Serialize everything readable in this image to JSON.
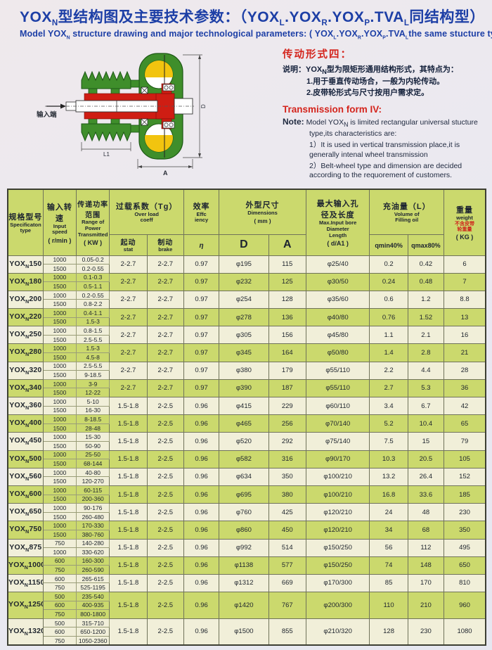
{
  "header": {
    "title_zh_segs": [
      "YOX",
      {
        "sub": "N"
      },
      "型结构图及主要技术参数：（YOX",
      {
        "sub": "L"
      },
      ".YOX",
      {
        "sub": "R"
      },
      ".YOX",
      {
        "sub": "P"
      },
      ".TVA",
      {
        "sub": "L"
      },
      "同结构型）"
    ],
    "title_en_segs": [
      "Model YOX",
      {
        "sub": "N"
      },
      " structure drawing and major technological parameters: ( YOX",
      {
        "sub": "L"
      },
      ".YOX",
      {
        "sub": "R"
      },
      ".YOX",
      {
        "sub": "P"
      },
      ".TVA",
      {
        "sub": "L"
      },
      "the same stucture type )"
    ]
  },
  "drawing": {
    "input_label": "输入端",
    "dim_l1": "L1",
    "dim_a": "A",
    "dim_d": "D"
  },
  "notes": {
    "heading_zh": "传动形式四：",
    "shuoming_label": "说明：",
    "shuoming_line1_segs": [
      "YOX",
      {
        "sub": "N"
      },
      "型为限矩形通用结构形式，其特点为："
    ],
    "shuoming_line2": "1.用于垂直传动场合，一般为内轮传动。",
    "shuoming_line3": "2.皮带轮形式与尺寸按用户需求定。",
    "heading_en": "Transmission form IV:",
    "note_label": "Note:",
    "note_line1_segs": [
      "Model YOX",
      {
        "sub": "N"
      },
      " is limited rectangular universal stucture type,its characteristics are:"
    ],
    "note_line2": "1）It is used in vertical transmission place,it is generally intenal wheel transmission",
    "note_line3": "2）Belt-wheel type and dimension are decided according to the requorement of customers."
  },
  "table": {
    "model_prefix_segs": [
      "YOX",
      {
        "sub": "N"
      }
    ],
    "h": {
      "model_zh": "规格型号",
      "model_en1": "Specificaton",
      "model_en2": "type",
      "speed_zh": "输入转速",
      "speed_en1": "Input",
      "speed_en2": "speed",
      "speed_unit": "( r/min )",
      "power_zh1": "传递功率",
      "power_zh2": "范围",
      "power_en1": "Range of",
      "power_en2": "Power",
      "power_en3": "Transmitted",
      "power_unit": "( KW )",
      "tg_zh": "过载系数（Tg）",
      "tg_en1": "Over load",
      "tg_en2": "coeff",
      "start_zh": "起动",
      "start_en": "stat",
      "brake_zh": "制动",
      "brake_en": "brake",
      "eff_zh": "效率",
      "eff_en1": "Effc",
      "eff_en2": "iency",
      "eff_sym": "η",
      "dim_zh": "外型尺寸",
      "dim_en": "Dimensions",
      "dim_unit": "( mm )",
      "dim_d": "D",
      "dim_a": "A",
      "bore_zh1": "最大输入孔",
      "bore_zh2": "径及长度",
      "bore_en1": "Max.Input bore",
      "bore_en2": "Diameter",
      "bore_en3": "Length",
      "bore_unit": "( d/A1 )",
      "oil_zh": "充油量（L）",
      "oil_en1": "Volume of",
      "oil_en2": "Filling oil",
      "oil_min": "qmin40%",
      "oil_max": "qmax80%",
      "kg_zh": "重量",
      "kg_en": "weight",
      "kg_note1": "不含皮带",
      "kg_note2": "轮重量",
      "kg_unit": "( KG )"
    },
    "rows": [
      {
        "model": "150",
        "speeds": [
          [
            "1000",
            "0.05-0.2"
          ],
          [
            "1500",
            "0.2-0.55"
          ]
        ],
        "tg1": "2-2.7",
        "tg2": "2-2.7",
        "eff": "0.97",
        "d": "φ195",
        "a": "115",
        "bore": "φ25/40",
        "qmin": "0.2",
        "qmax": "0.42",
        "kg": "6"
      },
      {
        "model": "180",
        "speeds": [
          [
            "1000",
            "0.1-0.3"
          ],
          [
            "1500",
            "0.5-1.1"
          ]
        ],
        "tg1": "2-2.7",
        "tg2": "2-2.7",
        "eff": "0.97",
        "d": "φ232",
        "a": "125",
        "bore": "φ30/50",
        "qmin": "0.24",
        "qmax": "0.48",
        "kg": "7"
      },
      {
        "model": "200",
        "speeds": [
          [
            "1000",
            "0.2-0.55"
          ],
          [
            "1500",
            "0.8-2.2"
          ]
        ],
        "tg1": "2-2.7",
        "tg2": "2-2.7",
        "eff": "0.97",
        "d": "φ254",
        "a": "128",
        "bore": "φ35/60",
        "qmin": "0.6",
        "qmax": "1.2",
        "kg": "8.8"
      },
      {
        "model": "220",
        "speeds": [
          [
            "1000",
            "0.4-1.1"
          ],
          [
            "1500",
            "1.5-3"
          ]
        ],
        "tg1": "2-2.7",
        "tg2": "2-2.7",
        "eff": "0.97",
        "d": "φ278",
        "a": "136",
        "bore": "φ40/80",
        "qmin": "0.76",
        "qmax": "1.52",
        "kg": "13"
      },
      {
        "model": "250",
        "speeds": [
          [
            "1000",
            "0.8-1.5"
          ],
          [
            "1500",
            "2.5-5.5"
          ]
        ],
        "tg1": "2-2.7",
        "tg2": "2-2.7",
        "eff": "0.97",
        "d": "φ305",
        "a": "156",
        "bore": "φ45/80",
        "qmin": "1.1",
        "qmax": "2.1",
        "kg": "16"
      },
      {
        "model": "280",
        "speeds": [
          [
            "1000",
            "1.5-3"
          ],
          [
            "1500",
            "4.5-8"
          ]
        ],
        "tg1": "2-2.7",
        "tg2": "2-2.7",
        "eff": "0.97",
        "d": "φ345",
        "a": "164",
        "bore": "φ50/80",
        "qmin": "1.4",
        "qmax": "2.8",
        "kg": "21"
      },
      {
        "model": "320",
        "speeds": [
          [
            "1000",
            "2.5-5.5"
          ],
          [
            "1500",
            "9-18.5"
          ]
        ],
        "tg1": "2-2.7",
        "tg2": "2-2.7",
        "eff": "0.97",
        "d": "φ380",
        "a": "179",
        "bore": "φ55/110",
        "qmin": "2.2",
        "qmax": "4.4",
        "kg": "28"
      },
      {
        "model": "340",
        "speeds": [
          [
            "1000",
            "3-9"
          ],
          [
            "1500",
            "12-22"
          ]
        ],
        "tg1": "2-2.7",
        "tg2": "2-2.7",
        "eff": "0.97",
        "d": "φ390",
        "a": "187",
        "bore": "φ55/110",
        "qmin": "2.7",
        "qmax": "5.3",
        "kg": "36"
      },
      {
        "model": "360",
        "speeds": [
          [
            "1000",
            "5-10"
          ],
          [
            "1500",
            "16-30"
          ]
        ],
        "tg1": "1.5-1.8",
        "tg2": "2-2.5",
        "eff": "0.96",
        "d": "φ415",
        "a": "229",
        "bore": "φ60/110",
        "qmin": "3.4",
        "qmax": "6.7",
        "kg": "42"
      },
      {
        "model": "400",
        "speeds": [
          [
            "1000",
            "8-18.5"
          ],
          [
            "1500",
            "28-48"
          ]
        ],
        "tg1": "1.5-1.8",
        "tg2": "2-2.5",
        "eff": "0.96",
        "d": "φ465",
        "a": "256",
        "bore": "φ70/140",
        "qmin": "5.2",
        "qmax": "10.4",
        "kg": "65"
      },
      {
        "model": "450",
        "speeds": [
          [
            "1000",
            "15-30"
          ],
          [
            "1500",
            "50-90"
          ]
        ],
        "tg1": "1.5-1.8",
        "tg2": "2-2.5",
        "eff": "0.96",
        "d": "φ520",
        "a": "292",
        "bore": "φ75/140",
        "qmin": "7.5",
        "qmax": "15",
        "kg": "79"
      },
      {
        "model": "500",
        "speeds": [
          [
            "1000",
            "25-50"
          ],
          [
            "1500",
            "68-144"
          ]
        ],
        "tg1": "1.5-1.8",
        "tg2": "2-2.5",
        "eff": "0.96",
        "d": "φ582",
        "a": "316",
        "bore": "φ90/170",
        "qmin": "10.3",
        "qmax": "20.5",
        "kg": "105"
      },
      {
        "model": "560",
        "speeds": [
          [
            "1000",
            "40-80"
          ],
          [
            "1500",
            "120-270"
          ]
        ],
        "tg1": "1.5-1.8",
        "tg2": "2-2.5",
        "eff": "0.96",
        "d": "φ634",
        "a": "350",
        "bore": "φ100/210",
        "qmin": "13.2",
        "qmax": "26.4",
        "kg": "152"
      },
      {
        "model": "600",
        "speeds": [
          [
            "1000",
            "60-115"
          ],
          [
            "1500",
            "200-360"
          ]
        ],
        "tg1": "1.5-1.8",
        "tg2": "2-2.5",
        "eff": "0.96",
        "d": "φ695",
        "a": "380",
        "bore": "φ100/210",
        "qmin": "16.8",
        "qmax": "33.6",
        "kg": "185"
      },
      {
        "model": "650",
        "speeds": [
          [
            "1000",
            "90-176"
          ],
          [
            "1500",
            "260-480"
          ]
        ],
        "tg1": "1.5-1.8",
        "tg2": "2-2.5",
        "eff": "0.96",
        "d": "φ760",
        "a": "425",
        "bore": "φ120/210",
        "qmin": "24",
        "qmax": "48",
        "kg": "230"
      },
      {
        "model": "750",
        "speeds": [
          [
            "1000",
            "170-330"
          ],
          [
            "1500",
            "380-760"
          ]
        ],
        "tg1": "1.5-1.8",
        "tg2": "2-2.5",
        "eff": "0.96",
        "d": "φ860",
        "a": "450",
        "bore": "φ120/210",
        "qmin": "34",
        "qmax": "68",
        "kg": "350"
      },
      {
        "model": "875",
        "speeds": [
          [
            "750",
            "140-280"
          ],
          [
            "1000",
            "330-620"
          ]
        ],
        "tg1": "1.5-1.8",
        "tg2": "2-2.5",
        "eff": "0.96",
        "d": "φ992",
        "a": "514",
        "bore": "φ150/250",
        "qmin": "56",
        "qmax": "112",
        "kg": "495"
      },
      {
        "model": "1000",
        "speeds": [
          [
            "600",
            "160-300"
          ],
          [
            "750",
            "260-590"
          ]
        ],
        "tg1": "1.5-1.8",
        "tg2": "2-2.5",
        "eff": "0.96",
        "d": "φ1138",
        "a": "577",
        "bore": "φ150/250",
        "qmin": "74",
        "qmax": "148",
        "kg": "650"
      },
      {
        "model": "1150",
        "speeds": [
          [
            "600",
            "265-615"
          ],
          [
            "750",
            "525-1195"
          ]
        ],
        "tg1": "1.5-1.8",
        "tg2": "2-2.5",
        "eff": "0.96",
        "d": "φ1312",
        "a": "669",
        "bore": "φ170/300",
        "qmin": "85",
        "qmax": "170",
        "kg": "810"
      },
      {
        "model": "1250",
        "speeds": [
          [
            "500",
            "235-540"
          ],
          [
            "600",
            "400-935"
          ],
          [
            "750",
            "800-1800"
          ]
        ],
        "tg1": "1.5-1.8",
        "tg2": "2-2.5",
        "eff": "0.96",
        "d": "φ1420",
        "a": "767",
        "bore": "φ200/300",
        "qmin": "110",
        "qmax": "210",
        "kg": "960"
      },
      {
        "model": "1320",
        "speeds": [
          [
            "500",
            "315-710"
          ],
          [
            "600",
            "650-1200"
          ],
          [
            "750",
            "1050-2360"
          ]
        ],
        "tg1": "1.5-1.8",
        "tg2": "2-2.5",
        "eff": "0.96",
        "d": "φ1500",
        "a": "855",
        "bore": "φ210/320",
        "qmin": "128",
        "qmax": "230",
        "kg": "1080"
      }
    ]
  },
  "colors": {
    "title_blue": "#1d3fa6",
    "accent_red": "#d4241c",
    "table_green": "#cbd96d",
    "table_cream": "#f1efd9",
    "draw_green": "#3f8e2b",
    "draw_red": "#cf1d13",
    "draw_yellow": "#f2c40f"
  }
}
